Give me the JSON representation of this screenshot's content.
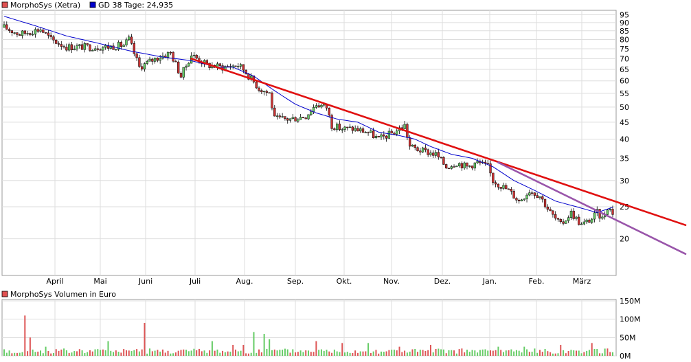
{
  "chart_data": [
    {
      "type": "candlestick",
      "legend": [
        {
          "label": "MorphoSys (Xetra)",
          "color": "#e05050"
        },
        {
          "label": "GD 38 Tage: 24,935",
          "color": "#0000cc"
        }
      ],
      "y_scale": "log",
      "ylim": [
        15.5,
        98
      ],
      "y_ticks": [
        20,
        25,
        30,
        35,
        40,
        45,
        50,
        55,
        60,
        65,
        70,
        75,
        80,
        85,
        90,
        95
      ],
      "months": [
        "April",
        "Mai",
        "Juni",
        "Juli",
        "Aug.",
        "Sep.",
        "Okt.",
        "Nov.",
        "Dez.",
        "Jan.",
        "Feb.",
        "März"
      ],
      "close_path": [
        [
          0,
          87
        ],
        [
          3,
          83
        ],
        [
          7,
          86
        ],
        [
          9,
          80
        ],
        [
          12,
          76
        ],
        [
          16,
          76
        ],
        [
          20,
          76
        ],
        [
          23,
          77
        ],
        [
          24,
          80
        ],
        [
          26,
          66
        ],
        [
          29,
          70
        ],
        [
          32,
          73
        ],
        [
          34,
          62
        ],
        [
          36,
          72
        ],
        [
          39,
          67
        ],
        [
          42,
          66
        ],
        [
          45,
          67
        ],
        [
          46,
          65
        ],
        [
          49,
          57
        ],
        [
          51,
          55
        ],
        [
          52,
          46
        ],
        [
          55,
          46
        ],
        [
          58,
          47
        ],
        [
          60,
          51
        ],
        [
          62,
          50
        ],
        [
          63,
          44
        ],
        [
          65,
          43
        ],
        [
          67,
          43
        ],
        [
          70,
          42
        ],
        [
          72,
          40
        ],
        [
          75,
          42
        ],
        [
          77,
          44
        ],
        [
          78,
          38
        ],
        [
          80,
          37
        ],
        [
          83,
          36
        ],
        [
          85,
          33
        ],
        [
          87,
          34
        ],
        [
          89,
          33
        ],
        [
          91,
          34
        ],
        [
          93,
          33
        ],
        [
          94,
          30
        ],
        [
          97,
          28
        ],
        [
          99,
          26
        ],
        [
          101,
          28
        ],
        [
          103,
          27
        ],
        [
          105,
          24
        ],
        [
          107,
          22
        ],
        [
          109,
          24
        ],
        [
          111,
          22
        ],
        [
          113,
          23
        ],
        [
          114,
          24
        ],
        [
          115,
          23
        ],
        [
          116,
          25
        ],
        [
          117,
          24
        ]
      ],
      "sma_path": [
        [
          0,
          94
        ],
        [
          6,
          88
        ],
        [
          12,
          82
        ],
        [
          18,
          78
        ],
        [
          24,
          74
        ],
        [
          30,
          71
        ],
        [
          36,
          69
        ],
        [
          41,
          66
        ],
        [
          44,
          66
        ],
        [
          48,
          62
        ],
        [
          52,
          56
        ],
        [
          56,
          51
        ],
        [
          60,
          48
        ],
        [
          64,
          46
        ],
        [
          68,
          45
        ],
        [
          72,
          42
        ],
        [
          76,
          41
        ],
        [
          79,
          40
        ],
        [
          82,
          38
        ],
        [
          86,
          36
        ],
        [
          90,
          35
        ],
        [
          94,
          33
        ],
        [
          98,
          30
        ],
        [
          102,
          28
        ],
        [
          106,
          26
        ],
        [
          110,
          25
        ],
        [
          114,
          24
        ],
        [
          117,
          24.9
        ]
      ],
      "trendlines": [
        {
          "color": "#e01010",
          "from": [
            36,
            70
          ],
          "to": [
            131,
            22
          ]
        },
        {
          "color": "#9955aa",
          "from": [
            95,
            34
          ],
          "to": [
            131,
            18
          ]
        }
      ]
    },
    {
      "type": "bar",
      "legend": [
        {
          "label": "MorphoSys Volumen in Euro",
          "color": "#e05050"
        }
      ],
      "y_ticks": [
        "150M",
        "100M",
        "50M",
        "0M"
      ],
      "ylim": [
        0,
        150
      ],
      "unit": "M EUR",
      "spikes": [
        [
          2,
          8
        ],
        [
          4,
          110
        ],
        [
          5,
          50
        ],
        [
          8,
          25
        ],
        [
          12,
          15
        ],
        [
          20,
          40
        ],
        [
          26,
          12
        ],
        [
          27,
          90
        ],
        [
          28,
          20
        ],
        [
          40,
          40
        ],
        [
          44,
          30
        ],
        [
          46,
          30
        ],
        [
          48,
          65
        ],
        [
          50,
          60
        ],
        [
          51,
          45
        ],
        [
          60,
          40
        ],
        [
          65,
          35
        ],
        [
          70,
          35
        ],
        [
          76,
          25
        ],
        [
          82,
          30
        ],
        [
          88,
          20
        ],
        [
          95,
          25
        ],
        [
          100,
          25
        ],
        [
          107,
          30
        ],
        [
          113,
          35
        ],
        [
          116,
          20
        ]
      ]
    }
  ]
}
